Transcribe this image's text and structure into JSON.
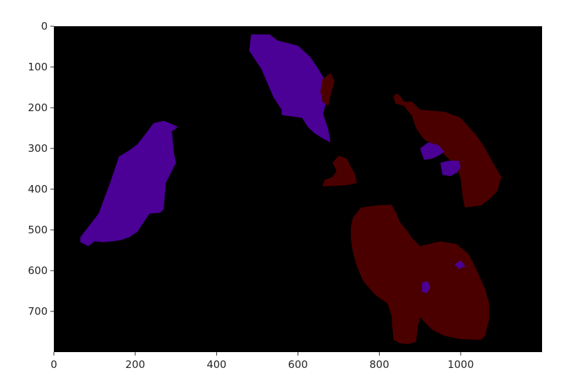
{
  "chart_data": {
    "type": "heatmap",
    "title": "",
    "xlabel": "",
    "ylabel": "",
    "xlim": [
      0,
      1200
    ],
    "ylim": [
      800,
      0
    ],
    "y_inverted": true,
    "grid": false,
    "legend": "none",
    "x_ticks": [
      0,
      200,
      400,
      600,
      800,
      1000
    ],
    "y_ticks": [
      0,
      100,
      200,
      300,
      400,
      500,
      600,
      700
    ],
    "x_tick_labels": [
      "0",
      "200",
      "400",
      "600",
      "800",
      "1000"
    ],
    "y_tick_labels": [
      "0",
      "100",
      "200",
      "300",
      "400",
      "500",
      "600",
      "700"
    ],
    "background_color": "#000000",
    "class_colors": {
      "purple": "#4b0096",
      "dark_red": "#4b0000"
    },
    "regions": [
      {
        "color": "#4b0096",
        "points": [
          [
            65,
            518
          ],
          [
            110,
            460
          ],
          [
            138,
            385
          ],
          [
            160,
            320
          ],
          [
            185,
            305
          ],
          [
            205,
            290
          ],
          [
            225,
            265
          ],
          [
            245,
            238
          ],
          [
            270,
            232
          ],
          [
            290,
            240
          ],
          [
            305,
            248
          ],
          [
            290,
            258
          ],
          [
            295,
            310
          ],
          [
            300,
            335
          ],
          [
            275,
            385
          ],
          [
            270,
            450
          ],
          [
            260,
            458
          ],
          [
            235,
            460
          ],
          [
            205,
            505
          ],
          [
            185,
            518
          ],
          [
            165,
            525
          ],
          [
            145,
            528
          ],
          [
            120,
            530
          ],
          [
            100,
            528
          ],
          [
            85,
            540
          ],
          [
            65,
            530
          ]
        ]
      },
      {
        "color": "#4b0096",
        "points": [
          [
            485,
            20
          ],
          [
            530,
            20
          ],
          [
            550,
            35
          ],
          [
            600,
            48
          ],
          [
            630,
            75
          ],
          [
            650,
            105
          ],
          [
            665,
            130
          ],
          [
            660,
            155
          ],
          [
            670,
            185
          ],
          [
            662,
            215
          ],
          [
            675,
            255
          ],
          [
            680,
            285
          ],
          [
            660,
            275
          ],
          [
            640,
            262
          ],
          [
            625,
            248
          ],
          [
            610,
            225
          ],
          [
            560,
            218
          ],
          [
            560,
            205
          ],
          [
            540,
            175
          ],
          [
            510,
            105
          ],
          [
            480,
            60
          ],
          [
            485,
            20
          ]
        ]
      },
      {
        "color": "#4b0000",
        "points": [
          [
            660,
            130
          ],
          [
            680,
            115
          ],
          [
            690,
            135
          ],
          [
            680,
            170
          ],
          [
            675,
            195
          ],
          [
            660,
            185
          ],
          [
            655,
            160
          ]
        ]
      },
      {
        "color": "#4b0000",
        "points": [
          [
            835,
            175
          ],
          [
            840,
            190
          ],
          [
            860,
            195
          ],
          [
            880,
            220
          ],
          [
            890,
            250
          ],
          [
            910,
            278
          ],
          [
            940,
            295
          ],
          [
            975,
            330
          ],
          [
            990,
            345
          ],
          [
            1000,
            375
          ],
          [
            1005,
            420
          ],
          [
            1010,
            445
          ],
          [
            1050,
            440
          ],
          [
            1070,
            425
          ],
          [
            1090,
            405
          ],
          [
            1100,
            370
          ],
          [
            1085,
            345
          ],
          [
            1060,
            300
          ],
          [
            1040,
            270
          ],
          [
            1000,
            225
          ],
          [
            960,
            210
          ],
          [
            900,
            205
          ],
          [
            880,
            185
          ],
          [
            860,
            185
          ],
          [
            850,
            170
          ],
          [
            840,
            165
          ]
        ]
      },
      {
        "color": "#4b0096",
        "points": [
          [
            900,
            300
          ],
          [
            920,
            285
          ],
          [
            945,
            292
          ],
          [
            960,
            308
          ],
          [
            945,
            318
          ],
          [
            930,
            325
          ],
          [
            910,
            328
          ]
        ]
      },
      {
        "color": "#4b0096",
        "points": [
          [
            950,
            335
          ],
          [
            970,
            330
          ],
          [
            995,
            330
          ],
          [
            1000,
            345
          ],
          [
            990,
            360
          ],
          [
            975,
            368
          ],
          [
            955,
            365
          ]
        ]
      },
      {
        "color": "#4b0000",
        "points": [
          [
            685,
            335
          ],
          [
            700,
            318
          ],
          [
            720,
            325
          ],
          [
            730,
            345
          ],
          [
            740,
            362
          ],
          [
            745,
            385
          ],
          [
            720,
            390
          ],
          [
            690,
            392
          ],
          [
            660,
            393
          ],
          [
            665,
            378
          ],
          [
            685,
            370
          ],
          [
            695,
            355
          ]
        ]
      },
      {
        "color": "#4b0000",
        "points": [
          [
            735,
            470
          ],
          [
            755,
            445
          ],
          [
            790,
            440
          ],
          [
            830,
            438
          ],
          [
            840,
            455
          ],
          [
            850,
            480
          ],
          [
            870,
            505
          ],
          [
            880,
            520
          ],
          [
            900,
            540
          ],
          [
            950,
            528
          ],
          [
            990,
            535
          ],
          [
            1020,
            560
          ],
          [
            1040,
            600
          ],
          [
            1060,
            645
          ],
          [
            1070,
            680
          ],
          [
            1070,
            720
          ],
          [
            1060,
            760
          ],
          [
            1050,
            770
          ],
          [
            1000,
            768
          ],
          [
            960,
            760
          ],
          [
            930,
            745
          ],
          [
            910,
            725
          ],
          [
            900,
            715
          ],
          [
            895,
            735
          ],
          [
            890,
            775
          ],
          [
            870,
            780
          ],
          [
            850,
            778
          ],
          [
            835,
            770
          ],
          [
            832,
            740
          ],
          [
            830,
            710
          ],
          [
            820,
            680
          ],
          [
            790,
            660
          ],
          [
            760,
            625
          ],
          [
            745,
            590
          ],
          [
            735,
            555
          ],
          [
            730,
            520
          ],
          [
            730,
            495
          ]
        ]
      },
      {
        "color": "#4b0096",
        "points": [
          [
            905,
            630
          ],
          [
            918,
            625
          ],
          [
            925,
            640
          ],
          [
            918,
            655
          ],
          [
            905,
            652
          ]
        ]
      },
      {
        "color": "#4b0096",
        "points": [
          [
            985,
            585
          ],
          [
            1000,
            575
          ],
          [
            1012,
            590
          ],
          [
            995,
            595
          ]
        ]
      }
    ]
  }
}
